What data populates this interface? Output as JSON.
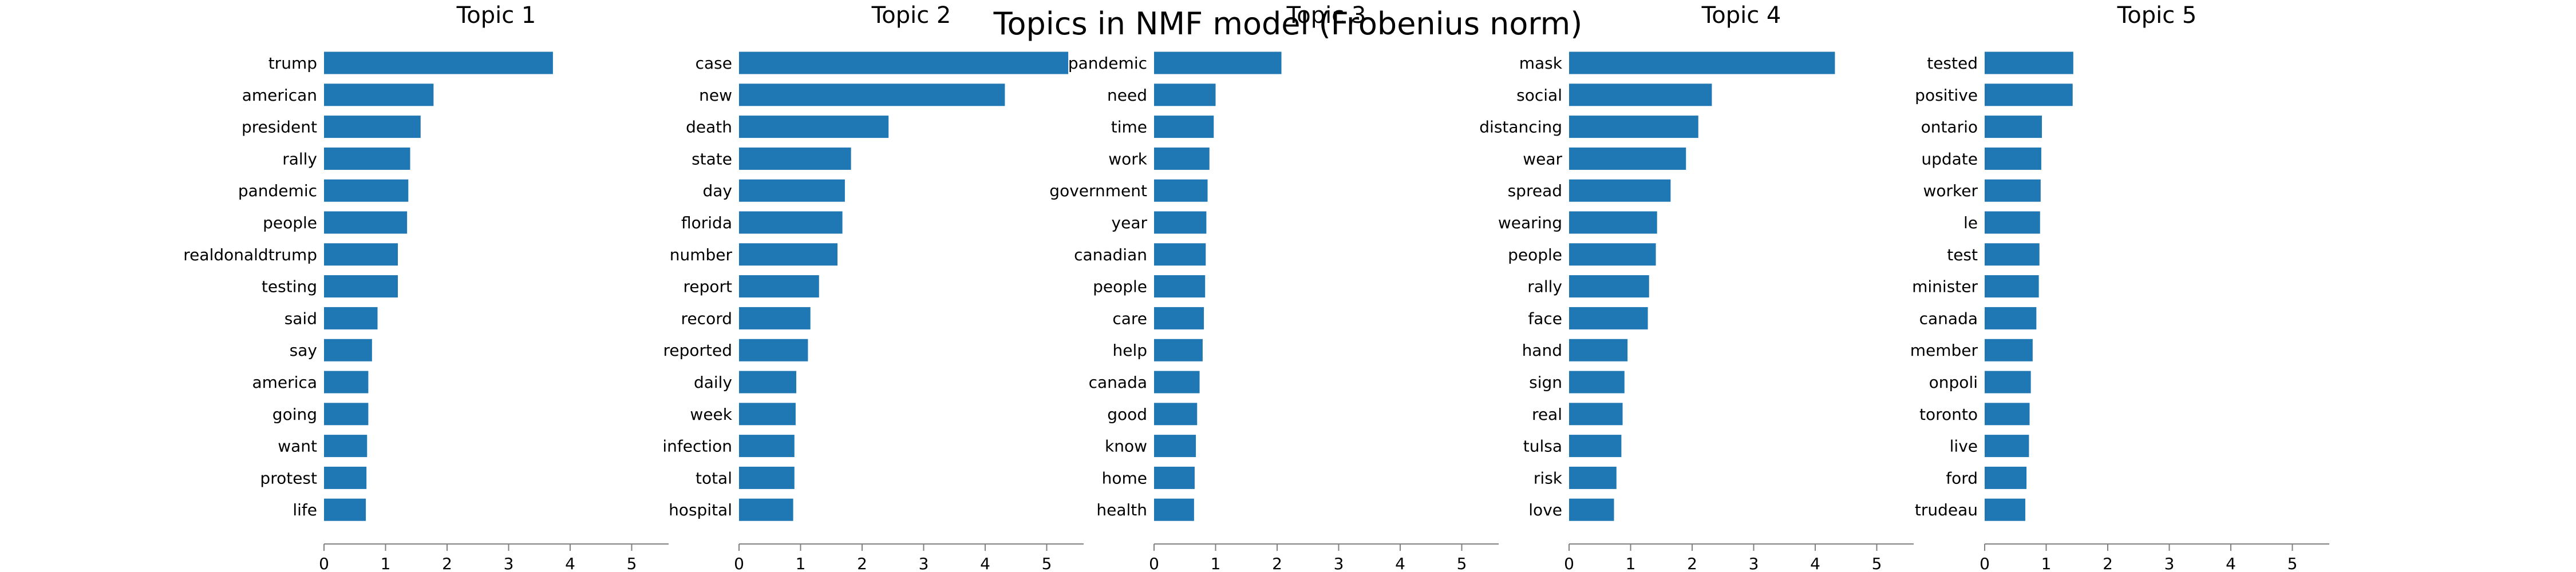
{
  "title": "Topics in NMF model (Frobenius norm)",
  "colors": {
    "bar": "#1f77b4",
    "axis": "#808080",
    "text": "#000000"
  },
  "chart_data": [
    {
      "type": "bar",
      "orientation": "horizontal",
      "title": "Topic 1",
      "xlim": [
        0,
        5.6
      ],
      "xticks": [
        0,
        1,
        2,
        3,
        4,
        5
      ],
      "categories": [
        "trump",
        "american",
        "president",
        "rally",
        "pandemic",
        "people",
        "realdonaldtrump",
        "testing",
        "said",
        "say",
        "america",
        "going",
        "want",
        "protest",
        "life"
      ],
      "values": [
        3.72,
        1.78,
        1.57,
        1.4,
        1.37,
        1.35,
        1.2,
        1.2,
        0.87,
        0.78,
        0.72,
        0.72,
        0.7,
        0.69,
        0.68
      ]
    },
    {
      "type": "bar",
      "orientation": "horizontal",
      "title": "Topic 2",
      "xlim": [
        0,
        5.6
      ],
      "xticks": [
        0,
        1,
        2,
        3,
        4,
        5
      ],
      "categories": [
        "case",
        "new",
        "death",
        "state",
        "day",
        "florida",
        "number",
        "report",
        "record",
        "reported",
        "daily",
        "week",
        "infection",
        "total",
        "hospital"
      ],
      "values": [
        5.35,
        4.32,
        2.43,
        1.82,
        1.72,
        1.68,
        1.6,
        1.3,
        1.16,
        1.12,
        0.93,
        0.92,
        0.9,
        0.9,
        0.88
      ]
    },
    {
      "type": "bar",
      "orientation": "horizontal",
      "title": "Topic 3",
      "xlim": [
        0,
        5.6
      ],
      "xticks": [
        0,
        1,
        2,
        3,
        4,
        5
      ],
      "categories": [
        "pandemic",
        "need",
        "time",
        "work",
        "government",
        "year",
        "canadian",
        "people",
        "care",
        "help",
        "canada",
        "good",
        "know",
        "home",
        "health"
      ],
      "values": [
        2.07,
        1.0,
        0.97,
        0.9,
        0.87,
        0.85,
        0.84,
        0.83,
        0.81,
        0.79,
        0.74,
        0.7,
        0.68,
        0.66,
        0.65
      ]
    },
    {
      "type": "bar",
      "orientation": "horizontal",
      "title": "Topic 4",
      "xlim": [
        0,
        5.6
      ],
      "xticks": [
        0,
        1,
        2,
        3,
        4,
        5
      ],
      "categories": [
        "mask",
        "social",
        "distancing",
        "wear",
        "spread",
        "wearing",
        "people",
        "rally",
        "face",
        "hand",
        "sign",
        "real",
        "tulsa",
        "risk",
        "love"
      ],
      "values": [
        4.32,
        2.32,
        2.1,
        1.9,
        1.65,
        1.43,
        1.41,
        1.3,
        1.28,
        0.95,
        0.9,
        0.87,
        0.85,
        0.77,
        0.73
      ]
    },
    {
      "type": "bar",
      "orientation": "horizontal",
      "title": "Topic 5",
      "xlim": [
        0,
        5.6
      ],
      "xticks": [
        0,
        1,
        2,
        3,
        4,
        5
      ],
      "categories": [
        "tested",
        "positive",
        "ontario",
        "update",
        "worker",
        "le",
        "test",
        "minister",
        "canada",
        "member",
        "onpoli",
        "toronto",
        "live",
        "ford",
        "trudeau"
      ],
      "values": [
        1.44,
        1.43,
        0.93,
        0.92,
        0.91,
        0.9,
        0.89,
        0.88,
        0.84,
        0.78,
        0.75,
        0.73,
        0.72,
        0.68,
        0.66
      ]
    }
  ]
}
